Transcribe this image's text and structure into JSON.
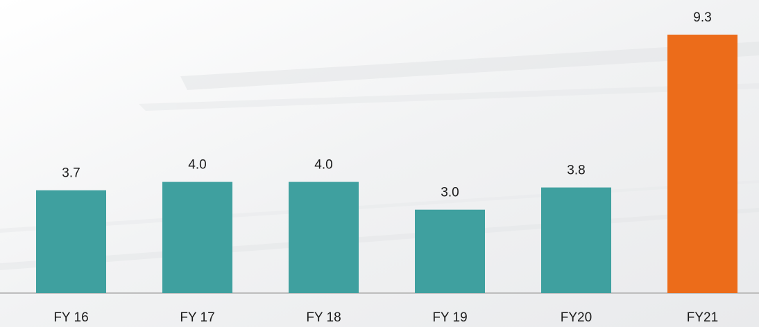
{
  "chart_data": {
    "type": "bar",
    "categories": [
      "FY 16",
      "FY 17",
      "FY 18",
      "FY 19",
      "FY20",
      "FY21"
    ],
    "values": [
      3.7,
      4.0,
      4.0,
      3.0,
      3.8,
      9.3
    ],
    "value_labels": [
      "3.7",
      "4.0",
      "4.0",
      "3.0",
      "3.8",
      "9.3"
    ],
    "colors": [
      "#3fa09f",
      "#3fa09f",
      "#3fa09f",
      "#3fa09f",
      "#3fa09f",
      "#ec6c1a"
    ]
  }
}
